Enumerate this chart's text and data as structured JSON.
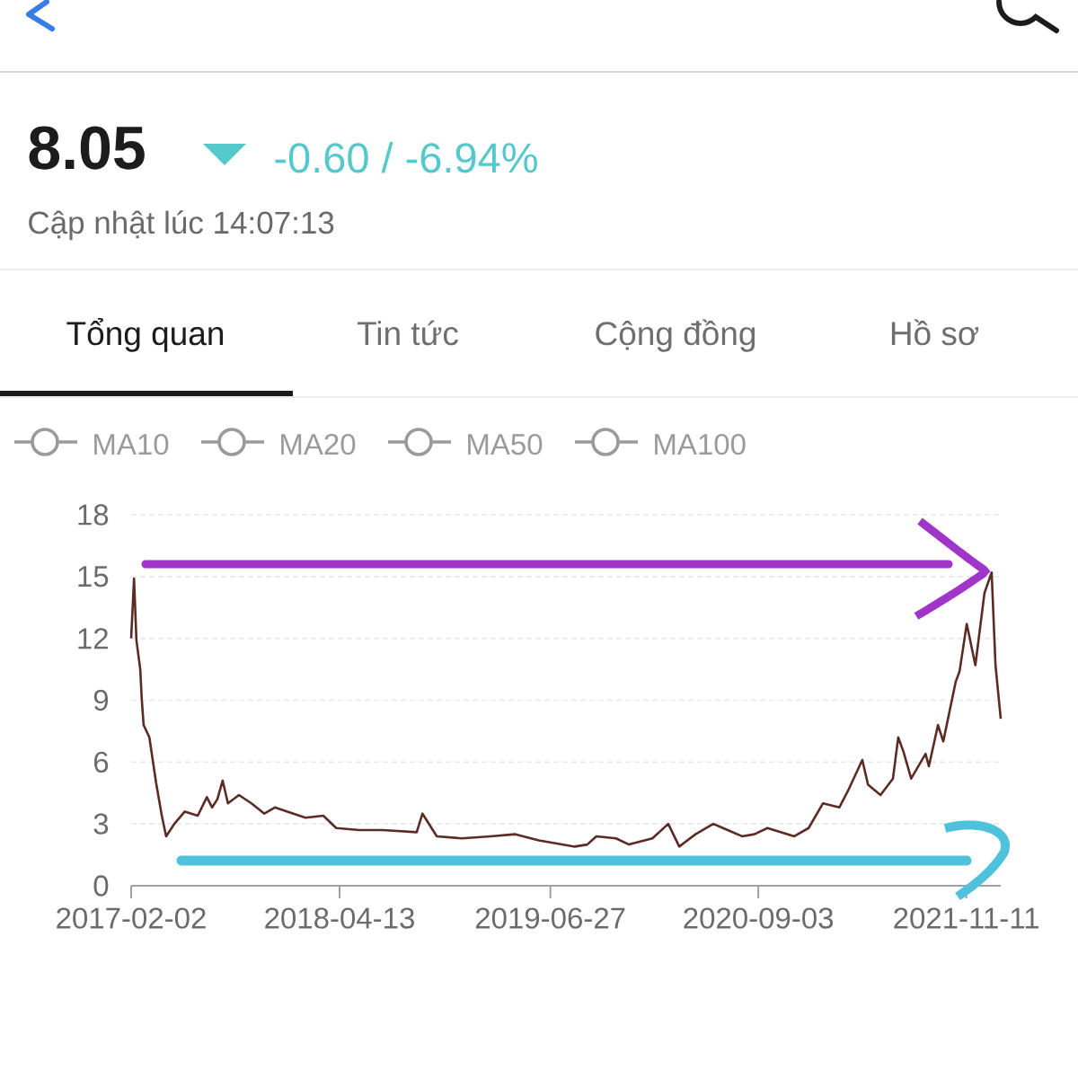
{
  "chart_data": {
    "type": "line",
    "color": "#5b2b24",
    "x": [
      "2017-02-02",
      "2017-02-08",
      "2017-02-13",
      "2017-02-21",
      "2017-02-24",
      "2017-02-28",
      "2017-03-12",
      "2017-03-26",
      "2017-04-07",
      "2017-04-16",
      "2017-05-03",
      "2017-05-25",
      "2017-06-21",
      "2017-07-10",
      "2017-07-21",
      "2017-08-01",
      "2017-08-12",
      "2017-08-23",
      "2017-09-15",
      "2017-10-11",
      "2017-11-07",
      "2017-11-29",
      "2017-12-25",
      "2018-02-01",
      "2018-03-10",
      "2018-04-06",
      "2018-05-24",
      "2018-07-12",
      "2018-09-21",
      "2018-10-03",
      "2018-11-02",
      "2018-12-24",
      "2019-02-22",
      "2019-04-15",
      "2019-06-03",
      "2019-08-17",
      "2019-09-12",
      "2019-10-01",
      "2019-11-11",
      "2019-12-08",
      "2020-01-26",
      "2020-02-28",
      "2020-03-22",
      "2020-04-25",
      "2020-06-01",
      "2020-07-01",
      "2020-07-31",
      "2020-08-26",
      "2020-09-22",
      "2020-11-17",
      "2020-12-17",
      "2021-01-16",
      "2021-02-19",
      "2021-03-09",
      "2021-04-08",
      "2021-04-20",
      "2021-05-16",
      "2021-06-11",
      "2021-06-22",
      "2021-07-03",
      "2021-07-19",
      "2021-08-18",
      "2021-08-25",
      "2021-09-13",
      "2021-09-24",
      "2021-10-20",
      "2021-10-28",
      "2021-11-12",
      "2021-11-30",
      "2021-12-19",
      "2022-01-03",
      "2022-01-11",
      "2022-01-22"
    ],
    "values": [
      12.0,
      14.9,
      11.9,
      10.5,
      9.1,
      7.8,
      7.2,
      5.0,
      3.4,
      2.4,
      3.0,
      3.6,
      3.4,
      4.3,
      3.8,
      4.2,
      5.1,
      4.0,
      4.4,
      4.0,
      3.5,
      3.8,
      3.6,
      3.3,
      3.4,
      2.8,
      2.7,
      2.7,
      2.6,
      3.5,
      2.4,
      2.3,
      2.4,
      2.5,
      2.2,
      1.9,
      2.0,
      2.4,
      2.3,
      2.0,
      2.3,
      3.0,
      1.9,
      2.5,
      3.0,
      2.7,
      2.4,
      2.5,
      2.8,
      2.4,
      2.8,
      4.0,
      3.8,
      4.6,
      6.1,
      4.9,
      4.4,
      5.2,
      7.2,
      6.5,
      5.2,
      6.4,
      5.8,
      7.8,
      7.0,
      9.9,
      10.4,
      12.7,
      10.7,
      14.2,
      15.2,
      10.7,
      8.1
    ],
    "xlim": [
      "2017-02-02",
      "2022-01-22"
    ],
    "ylim": [
      0,
      18
    ],
    "xticks": [
      "2017-02-02",
      "2018-04-13",
      "2019-06-27",
      "2020-09-03",
      "2021-11-11"
    ],
    "yticks": [
      0,
      3,
      6,
      9,
      12,
      15,
      18
    ],
    "grid": "y",
    "annotations": [
      "8.05",
      "-0.60 / -6.94%",
      "Cập nhật lúc 14:07:13",
      "Tổng quan",
      "Tin tức",
      "Cộng đồng",
      "Hồ sơ",
      "MA10",
      "MA20",
      "MA50",
      "MA100"
    ]
  }
}
